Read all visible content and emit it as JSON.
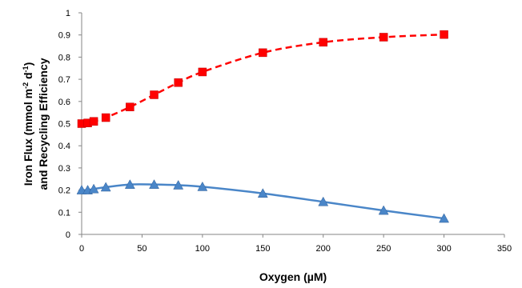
{
  "chart_data": {
    "type": "line",
    "xlabel": "Oxygen (µM)",
    "ylabel_line1": {
      "main": "Iron Flux (mmol m",
      "sup1": "-2",
      "mid": " d",
      "sup2": "-1",
      "end": ")"
    },
    "ylabel_line2": "and Recycling Efficiency",
    "xlim": [
      0,
      350
    ],
    "ylim": [
      0,
      1
    ],
    "x_ticks": [
      "0",
      "50",
      "100",
      "150",
      "200",
      "250",
      "300",
      "350"
    ],
    "y_ticks": [
      "0",
      "0.1",
      "0.2",
      "0.3",
      "0.4",
      "0.5",
      "0.6",
      "0.7",
      "0.8",
      "0.9",
      "1"
    ],
    "grid": false,
    "series": [
      {
        "marker": "square",
        "line_style": "dashed",
        "color": "#ff0000",
        "x": [
          0,
          5,
          10,
          20,
          40,
          60,
          80,
          100,
          150,
          200,
          250,
          300
        ],
        "y": [
          0.5,
          0.503,
          0.51,
          0.527,
          0.575,
          0.63,
          0.685,
          0.733,
          0.82,
          0.867,
          0.89,
          0.902
        ]
      },
      {
        "marker": "triangle",
        "line_style": "solid",
        "color": "#4a86c8",
        "x": [
          0,
          5,
          10,
          20,
          40,
          60,
          80,
          100,
          150,
          200,
          250,
          300
        ],
        "y": [
          0.2,
          0.2,
          0.205,
          0.213,
          0.225,
          0.225,
          0.222,
          0.215,
          0.185,
          0.147,
          0.108,
          0.072
        ]
      }
    ]
  }
}
